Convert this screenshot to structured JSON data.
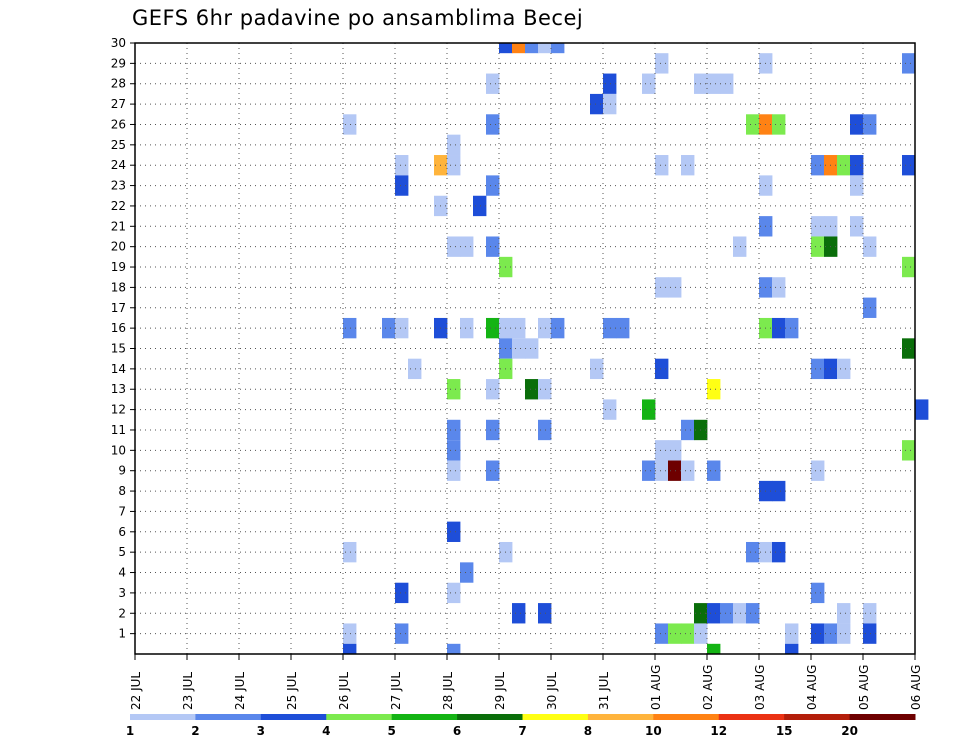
{
  "chart_data": {
    "type": "heatmap",
    "title": "GEFS 6hr padavine po ansamblima Becej",
    "xlabel": "",
    "ylabel": "",
    "x_tick_labels": [
      "22 JUL",
      "23 JUL",
      "24 JUL",
      "25 JUL",
      "26 JUL",
      "27 JUL",
      "28 JUL",
      "29 JUL",
      "30 JUL",
      "31 JUL",
      "01 AUG",
      "02 AUG",
      "03 AUG",
      "04 AUG",
      "05 AUG",
      "06 AUG"
    ],
    "y_tick_labels": [
      "1",
      "2",
      "3",
      "4",
      "5",
      "6",
      "7",
      "8",
      "9",
      "10",
      "11",
      "12",
      "13",
      "14",
      "15",
      "16",
      "17",
      "18",
      "19",
      "20",
      "21",
      "22",
      "23",
      "24",
      "25",
      "26",
      "27",
      "28",
      "29",
      "30"
    ],
    "x_range": [
      "22 JUL",
      "06 AUG"
    ],
    "y_range": [
      0,
      30
    ],
    "steps_per_day": 4,
    "grid": true,
    "legend_position": "bottom",
    "colorbar": {
      "thresholds": [
        "1",
        "2",
        "3",
        "4",
        "5",
        "6",
        "7",
        "8",
        "10",
        "12",
        "15",
        "20"
      ],
      "colors": [
        "#b4c8f5",
        "#5a87eb",
        "#1e4ed8",
        "#7cea4e",
        "#14b414",
        "#0a6e0a",
        "#ffff14",
        "#ffb43c",
        "#ff8214",
        "#eb3214",
        "#b41e0a",
        "#6e0000"
      ]
    },
    "cells": [
      {
        "member": 30,
        "day": "29 JUL",
        "step": 0,
        "value": 3
      },
      {
        "member": 30,
        "day": "29 JUL",
        "step": 1,
        "value": 10
      },
      {
        "member": 30,
        "day": "29 JUL",
        "step": 2,
        "value": 2
      },
      {
        "member": 30,
        "day": "29 JUL",
        "step": 3,
        "value": 1
      },
      {
        "member": 30,
        "day": "30 JUL",
        "step": 0,
        "value": 2
      },
      {
        "member": 29,
        "day": "01 AUG",
        "step": 0,
        "value": 1
      },
      {
        "member": 29,
        "day": "03 AUG",
        "step": 0,
        "value": 1
      },
      {
        "member": 29,
        "day": "05 AUG",
        "step": 3,
        "value": 2
      },
      {
        "member": 28,
        "day": "28 JUL",
        "step": 3,
        "value": 1
      },
      {
        "member": 28,
        "day": "31 JUL",
        "step": 0,
        "value": 3
      },
      {
        "member": 28,
        "day": "31 JUL",
        "step": 3,
        "value": 1
      },
      {
        "member": 28,
        "day": "01 AUG",
        "step": 3,
        "value": 1
      },
      {
        "member": 28,
        "day": "02 AUG",
        "step": 0,
        "value": 1
      },
      {
        "member": 28,
        "day": "02 AUG",
        "step": 1,
        "value": 1
      },
      {
        "member": 27,
        "day": "30 JUL",
        "step": 3,
        "value": 3
      },
      {
        "member": 27,
        "day": "31 JUL",
        "step": 0,
        "value": 1
      },
      {
        "member": 26,
        "day": "26 JUL",
        "step": 0,
        "value": 1
      },
      {
        "member": 26,
        "day": "28 JUL",
        "step": 3,
        "value": 2
      },
      {
        "member": 26,
        "day": "02 AUG",
        "step": 3,
        "value": 4
      },
      {
        "member": 26,
        "day": "03 AUG",
        "step": 0,
        "value": 10
      },
      {
        "member": 26,
        "day": "03 AUG",
        "step": 1,
        "value": 4
      },
      {
        "member": 26,
        "day": "04 AUG",
        "step": 3,
        "value": 3
      },
      {
        "member": 26,
        "day": "05 AUG",
        "step": 0,
        "value": 2
      },
      {
        "member": 25,
        "day": "28 JUL",
        "step": 0,
        "value": 1
      },
      {
        "member": 24,
        "day": "27 JUL",
        "step": 0,
        "value": 1
      },
      {
        "member": 24,
        "day": "27 JUL",
        "step": 3,
        "value": 8
      },
      {
        "member": 24,
        "day": "28 JUL",
        "step": 0,
        "value": 1
      },
      {
        "member": 24,
        "day": "01 AUG",
        "step": 0,
        "value": 1
      },
      {
        "member": 24,
        "day": "01 AUG",
        "step": 2,
        "value": 1
      },
      {
        "member": 24,
        "day": "04 AUG",
        "step": 0,
        "value": 2
      },
      {
        "member": 24,
        "day": "04 AUG",
        "step": 1,
        "value": 10
      },
      {
        "member": 24,
        "day": "04 AUG",
        "step": 2,
        "value": 4
      },
      {
        "member": 24,
        "day": "04 AUG",
        "step": 3,
        "value": 3
      },
      {
        "member": 24,
        "day": "05 AUG",
        "step": 3,
        "value": 3
      },
      {
        "member": 23,
        "day": "27 JUL",
        "step": 0,
        "value": 3
      },
      {
        "member": 23,
        "day": "28 JUL",
        "step": 3,
        "value": 2
      },
      {
        "member": 23,
        "day": "03 AUG",
        "step": 0,
        "value": 1
      },
      {
        "member": 23,
        "day": "04 AUG",
        "step": 3,
        "value": 1
      },
      {
        "member": 22,
        "day": "27 JUL",
        "step": 3,
        "value": 1
      },
      {
        "member": 22,
        "day": "28 JUL",
        "step": 2,
        "value": 3
      },
      {
        "member": 21,
        "day": "03 AUG",
        "step": 0,
        "value": 2
      },
      {
        "member": 21,
        "day": "04 AUG",
        "step": 0,
        "value": 1
      },
      {
        "member": 21,
        "day": "04 AUG",
        "step": 1,
        "value": 1
      },
      {
        "member": 21,
        "day": "04 AUG",
        "step": 3,
        "value": 1
      },
      {
        "member": 20,
        "day": "28 JUL",
        "step": 0,
        "value": 1
      },
      {
        "member": 20,
        "day": "28 JUL",
        "step": 1,
        "value": 1
      },
      {
        "member": 20,
        "day": "28 JUL",
        "step": 3,
        "value": 2
      },
      {
        "member": 20,
        "day": "02 AUG",
        "step": 2,
        "value": 1
      },
      {
        "member": 20,
        "day": "04 AUG",
        "step": 0,
        "value": 4
      },
      {
        "member": 20,
        "day": "04 AUG",
        "step": 1,
        "value": 6
      },
      {
        "member": 20,
        "day": "05 AUG",
        "step": 0,
        "value": 1
      },
      {
        "member": 19,
        "day": "29 JUL",
        "step": 0,
        "value": 4
      },
      {
        "member": 19,
        "day": "05 AUG",
        "step": 3,
        "value": 4
      },
      {
        "member": 18,
        "day": "01 AUG",
        "step": 0,
        "value": 1
      },
      {
        "member": 18,
        "day": "01 AUG",
        "step": 1,
        "value": 1
      },
      {
        "member": 18,
        "day": "03 AUG",
        "step": 0,
        "value": 2
      },
      {
        "member": 18,
        "day": "03 AUG",
        "step": 1,
        "value": 1
      },
      {
        "member": 17,
        "day": "05 AUG",
        "step": 0,
        "value": 2
      },
      {
        "member": 16,
        "day": "26 JUL",
        "step": 0,
        "value": 2
      },
      {
        "member": 16,
        "day": "26 JUL",
        "step": 3,
        "value": 2
      },
      {
        "member": 16,
        "day": "27 JUL",
        "step": 0,
        "value": 1
      },
      {
        "member": 16,
        "day": "27 JUL",
        "step": 3,
        "value": 3
      },
      {
        "member": 16,
        "day": "28 JUL",
        "step": 1,
        "value": 1
      },
      {
        "member": 16,
        "day": "28 JUL",
        "step": 3,
        "value": 5
      },
      {
        "member": 16,
        "day": "29 JUL",
        "step": 0,
        "value": 1
      },
      {
        "member": 16,
        "day": "29 JUL",
        "step": 1,
        "value": 1
      },
      {
        "member": 16,
        "day": "29 JUL",
        "step": 3,
        "value": 1
      },
      {
        "member": 16,
        "day": "30 JUL",
        "step": 0,
        "value": 2
      },
      {
        "member": 16,
        "day": "31 JUL",
        "step": 0,
        "value": 2
      },
      {
        "member": 16,
        "day": "31 JUL",
        "step": 1,
        "value": 2
      },
      {
        "member": 16,
        "day": "03 AUG",
        "step": 0,
        "value": 4
      },
      {
        "member": 16,
        "day": "03 AUG",
        "step": 1,
        "value": 3
      },
      {
        "member": 16,
        "day": "03 AUG",
        "step": 2,
        "value": 2
      },
      {
        "member": 15,
        "day": "29 JUL",
        "step": 0,
        "value": 2
      },
      {
        "member": 15,
        "day": "29 JUL",
        "step": 1,
        "value": 1
      },
      {
        "member": 15,
        "day": "29 JUL",
        "step": 2,
        "value": 1
      },
      {
        "member": 15,
        "day": "05 AUG",
        "step": 3,
        "value": 6
      },
      {
        "member": 14,
        "day": "27 JUL",
        "step": 1,
        "value": 1
      },
      {
        "member": 14,
        "day": "29 JUL",
        "step": 0,
        "value": 4
      },
      {
        "member": 14,
        "day": "30 JUL",
        "step": 3,
        "value": 1
      },
      {
        "member": 14,
        "day": "01 AUG",
        "step": 0,
        "value": 3
      },
      {
        "member": 14,
        "day": "04 AUG",
        "step": 0,
        "value": 2
      },
      {
        "member": 14,
        "day": "04 AUG",
        "step": 1,
        "value": 3
      },
      {
        "member": 14,
        "day": "04 AUG",
        "step": 2,
        "value": 1
      },
      {
        "member": 13,
        "day": "28 JUL",
        "step": 0,
        "value": 4
      },
      {
        "member": 13,
        "day": "28 JUL",
        "step": 3,
        "value": 1
      },
      {
        "member": 13,
        "day": "29 JUL",
        "step": 2,
        "value": 6
      },
      {
        "member": 13,
        "day": "29 JUL",
        "step": 3,
        "value": 1
      },
      {
        "member": 13,
        "day": "02 AUG",
        "step": 0,
        "value": 7
      },
      {
        "member": 12,
        "day": "31 JUL",
        "step": 0,
        "value": 1
      },
      {
        "member": 12,
        "day": "31 JUL",
        "step": 3,
        "value": 5
      },
      {
        "member": 12,
        "day": "06 AUG",
        "step": 0,
        "value": 3
      },
      {
        "member": 11,
        "day": "28 JUL",
        "step": 0,
        "value": 2
      },
      {
        "member": 11,
        "day": "28 JUL",
        "step": 3,
        "value": 2
      },
      {
        "member": 11,
        "day": "29 JUL",
        "step": 3,
        "value": 2
      },
      {
        "member": 11,
        "day": "01 AUG",
        "step": 2,
        "value": 2
      },
      {
        "member": 11,
        "day": "01 AUG",
        "step": 3,
        "value": 6
      },
      {
        "member": 10,
        "day": "28 JUL",
        "step": 0,
        "value": 2
      },
      {
        "member": 10,
        "day": "01 AUG",
        "step": 0,
        "value": 1
      },
      {
        "member": 10,
        "day": "01 AUG",
        "step": 1,
        "value": 1
      },
      {
        "member": 10,
        "day": "05 AUG",
        "step": 3,
        "value": 4
      },
      {
        "member": 9,
        "day": "28 JUL",
        "step": 0,
        "value": 1
      },
      {
        "member": 9,
        "day": "28 JUL",
        "step": 3,
        "value": 2
      },
      {
        "member": 9,
        "day": "31 JUL",
        "step": 3,
        "value": 2
      },
      {
        "member": 9,
        "day": "01 AUG",
        "step": 0,
        "value": 1
      },
      {
        "member": 9,
        "day": "01 AUG",
        "step": 1,
        "value": 20
      },
      {
        "member": 9,
        "day": "01 AUG",
        "step": 2,
        "value": 1
      },
      {
        "member": 9,
        "day": "02 AUG",
        "step": 0,
        "value": 2
      },
      {
        "member": 9,
        "day": "04 AUG",
        "step": 0,
        "value": 1
      },
      {
        "member": 8,
        "day": "03 AUG",
        "step": 0,
        "value": 3
      },
      {
        "member": 8,
        "day": "03 AUG",
        "step": 1,
        "value": 3
      },
      {
        "member": 6,
        "day": "28 JUL",
        "step": 0,
        "value": 3
      },
      {
        "member": 5,
        "day": "26 JUL",
        "step": 0,
        "value": 1
      },
      {
        "member": 5,
        "day": "29 JUL",
        "step": 0,
        "value": 1
      },
      {
        "member": 5,
        "day": "02 AUG",
        "step": 3,
        "value": 2
      },
      {
        "member": 5,
        "day": "03 AUG",
        "step": 0,
        "value": 1
      },
      {
        "member": 5,
        "day": "03 AUG",
        "step": 1,
        "value": 3
      },
      {
        "member": 4,
        "day": "28 JUL",
        "step": 1,
        "value": 2
      },
      {
        "member": 3,
        "day": "27 JUL",
        "step": 0,
        "value": 3
      },
      {
        "member": 3,
        "day": "28 JUL",
        "step": 0,
        "value": 1
      },
      {
        "member": 3,
        "day": "04 AUG",
        "step": 0,
        "value": 2
      },
      {
        "member": 2,
        "day": "29 JUL",
        "step": 1,
        "value": 3
      },
      {
        "member": 2,
        "day": "29 JUL",
        "step": 3,
        "value": 3
      },
      {
        "member": 2,
        "day": "01 AUG",
        "step": 3,
        "value": 6
      },
      {
        "member": 2,
        "day": "02 AUG",
        "step": 0,
        "value": 3
      },
      {
        "member": 2,
        "day": "02 AUG",
        "step": 1,
        "value": 2
      },
      {
        "member": 2,
        "day": "02 AUG",
        "step": 2,
        "value": 1
      },
      {
        "member": 2,
        "day": "02 AUG",
        "step": 3,
        "value": 2
      },
      {
        "member": 2,
        "day": "04 AUG",
        "step": 2,
        "value": 1
      },
      {
        "member": 2,
        "day": "05 AUG",
        "step": 0,
        "value": 1
      },
      {
        "member": 1,
        "day": "26 JUL",
        "step": 0,
        "value": 1
      },
      {
        "member": 1,
        "day": "27 JUL",
        "step": 0,
        "value": 2
      },
      {
        "member": 1,
        "day": "01 AUG",
        "step": 0,
        "value": 2
      },
      {
        "member": 1,
        "day": "01 AUG",
        "step": 1,
        "value": 4
      },
      {
        "member": 1,
        "day": "01 AUG",
        "step": 2,
        "value": 4
      },
      {
        "member": 1,
        "day": "01 AUG",
        "step": 3,
        "value": 1
      },
      {
        "member": 1,
        "day": "03 AUG",
        "step": 2,
        "value": 1
      },
      {
        "member": 1,
        "day": "04 AUG",
        "step": 0,
        "value": 3
      },
      {
        "member": 1,
        "day": "04 AUG",
        "step": 1,
        "value": 2
      },
      {
        "member": 1,
        "day": "04 AUG",
        "step": 2,
        "value": 1
      },
      {
        "member": 1,
        "day": "05 AUG",
        "step": 0,
        "value": 3
      },
      {
        "member": 0,
        "day": "26 JUL",
        "step": 0,
        "value": 3
      },
      {
        "member": 0,
        "day": "28 JUL",
        "step": 0,
        "value": 2
      },
      {
        "member": 0,
        "day": "02 AUG",
        "step": 0,
        "value": 5
      },
      {
        "member": 0,
        "day": "03 AUG",
        "step": 2,
        "value": 3
      }
    ]
  }
}
